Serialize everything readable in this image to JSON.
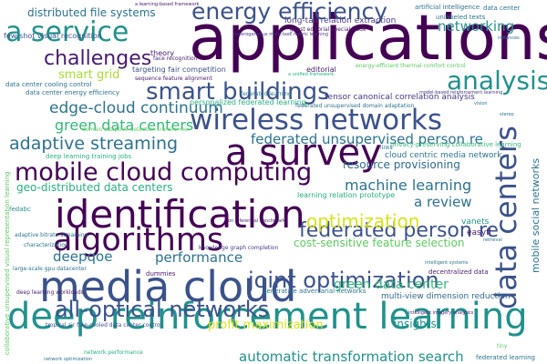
{
  "wordcloud": {
    "words": [
      "applications",
      "a survey",
      "media cloud",
      "deep reinforcement learning",
      "identification",
      "algorithms",
      "wireless networks",
      "mobile cloud computing",
      "smart buildings",
      "energy efficiency",
      "a service",
      "analysis",
      "challenges",
      "data centers",
      "all-optical networks",
      "joint optimization",
      "federated person re",
      "optimization",
      "adaptive streaming",
      "edge-cloud continuum",
      "green data centers",
      "federated unsupervised person re",
      "machine learning",
      "automatic transformation search",
      "networking",
      "distributed file systems",
      "deepqoe",
      "performance",
      "green data center",
      "cost-sensitive feature selection",
      "a review",
      "smart grid",
      "resource provisioning",
      "geo-distributed data centers",
      "cloud centric media network",
      "profit maximization",
      "insights",
      "long-tail relation extraction",
      "tensor canonical correlation analysis",
      "personalized federated learning",
      "mobile social networks",
      "multi-view dimension reduction",
      "privacy-preserving collaborative learning",
      "deep learning training jobs",
      "targeting fair competition",
      "data center cooling control",
      "data center energy efficiency",
      "few-shot visual recognition",
      "domain adaptive detection transformer",
      "federated learning",
      "knowledge graph completion",
      "generative adversarial networks",
      "learning relation prototype",
      "vanets",
      "easyfl",
      "dummies",
      "decentralized data",
      "theory",
      "editorial",
      "fedabc",
      "face recognition",
      "unlabeled texts",
      "data center",
      "artificial intelligence",
      "characterization",
      "deep learning workloads",
      "network performance",
      "tropical air free-cooled data center control",
      "large-scale gpu datacenter",
      "adaptive bitrate streaming",
      "network optimization",
      "links",
      "tiny",
      "collaborative unsupervised visual representation learning",
      "intelligent systems",
      "sequence feature alignment",
      "federated learning",
      "federated unsupervised domain adaptation",
      "a unified framework",
      "energy-efficient thermal comfort control",
      "guest editorial special issue",
      "model-based reinforcement learning",
      "on inferential benchmark",
      "retrieval",
      "instances",
      "vision",
      "stereo",
      "heterogeneous multi-task metric learning",
      "a learning-based framework",
      "intelligent imagery analytics"
    ]
  }
}
